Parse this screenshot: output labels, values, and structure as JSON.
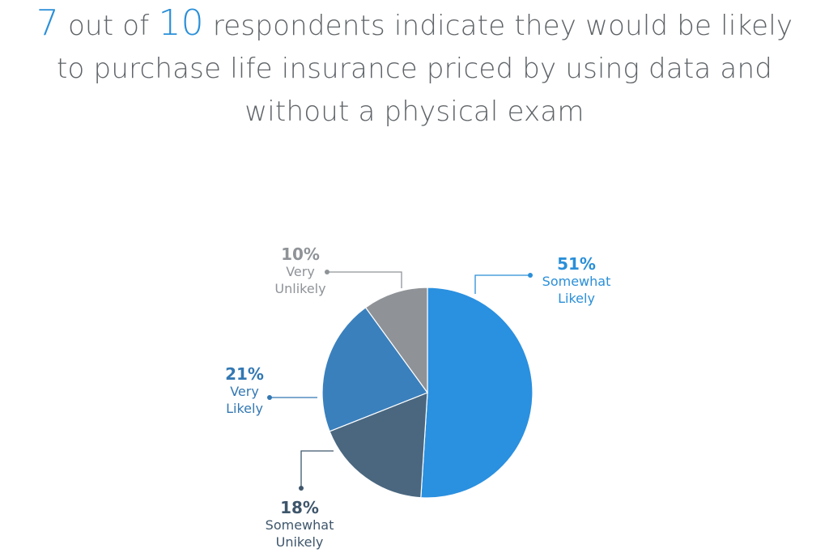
{
  "headline": {
    "prefix_number": "7",
    "mid_text": " out of ",
    "mid_number": "10",
    "line1_rest": " respondents indicate they would be likely",
    "line2": "to purchase life insurance priced by using data and",
    "line3": "without a physical exam"
  },
  "colors": {
    "highlight": "#2a8fd8",
    "headline_text": "#5f6468"
  },
  "chart_data": {
    "type": "pie",
    "title": "7 out of 10 respondents indicate they would be likely to purchase life insurance priced by using data and without a physical exam",
    "series": [
      {
        "name": "Somewhat Likely",
        "value": 51,
        "pct_label": "51%",
        "label_lines": [
          "Somewhat",
          "Likely"
        ],
        "color": "#2a90e0",
        "label_color": "#2a8fd8"
      },
      {
        "name": "Somewhat Unikely",
        "value": 18,
        "pct_label": "18%",
        "label_lines": [
          "Somewhat",
          "Unikely"
        ],
        "color": "#4a677f",
        "label_color": "#3e566b"
      },
      {
        "name": "Very Likely",
        "value": 21,
        "pct_label": "21%",
        "label_lines": [
          "Very",
          "Likely"
        ],
        "color": "#3a80bd",
        "label_color": "#3378b3"
      },
      {
        "name": "Very Unlikely",
        "value": 10,
        "pct_label": "10%",
        "label_lines": [
          "Very",
          "Unlikely"
        ],
        "color": "#8f9398",
        "label_color": "#8f9398"
      }
    ],
    "legend": "none"
  }
}
